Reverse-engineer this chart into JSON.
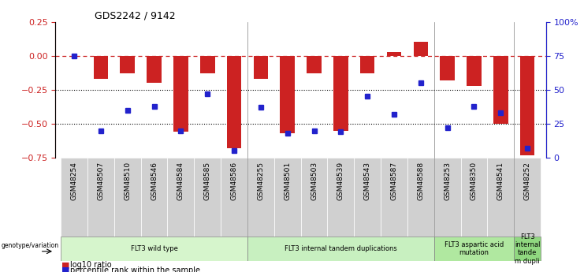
{
  "title": "GDS2242 / 9142",
  "samples": [
    "GSM48254",
    "GSM48507",
    "GSM48510",
    "GSM48546",
    "GSM48584",
    "GSM48585",
    "GSM48586",
    "GSM48255",
    "GSM48501",
    "GSM48503",
    "GSM48539",
    "GSM48543",
    "GSM48587",
    "GSM48588",
    "GSM48253",
    "GSM48350",
    "GSM48541",
    "GSM48252"
  ],
  "log10_ratio": [
    0.0,
    -0.17,
    -0.13,
    -0.2,
    -0.56,
    -0.13,
    -0.68,
    -0.17,
    -0.57,
    -0.13,
    -0.55,
    -0.13,
    0.03,
    0.1,
    -0.18,
    -0.22,
    -0.5,
    -0.73
  ],
  "percentile_rank": [
    75,
    20,
    35,
    38,
    20,
    47,
    5,
    37,
    18,
    20,
    19,
    45,
    32,
    55,
    22,
    38,
    33,
    7
  ],
  "groups": [
    {
      "label": "FLT3 wild type",
      "start": 0,
      "end": 6,
      "color": "#d6f5cc"
    },
    {
      "label": "FLT3 internal tandem duplications",
      "start": 7,
      "end": 13,
      "color": "#c8f0c0"
    },
    {
      "label": "FLT3 aspartic acid\nmutation",
      "start": 14,
      "end": 16,
      "color": "#b0e8a0"
    },
    {
      "label": "FLT3\ninternal\ntande\nm dupli",
      "start": 17,
      "end": 17,
      "color": "#90d880"
    }
  ],
  "bar_color": "#cc2222",
  "dot_color": "#2222cc",
  "dashed_line_color": "#cc2222",
  "left_ylim": [
    -0.75,
    0.25
  ],
  "right_ylim": [
    0,
    100
  ],
  "left_yticks": [
    -0.75,
    -0.5,
    -0.25,
    0,
    0.25
  ],
  "right_yticks": [
    0,
    25,
    50,
    75,
    100
  ],
  "right_yticklabels": [
    "0",
    "25",
    "50",
    "75",
    "100%"
  ],
  "group_dividers": [
    6.5,
    13.5,
    16.5
  ]
}
